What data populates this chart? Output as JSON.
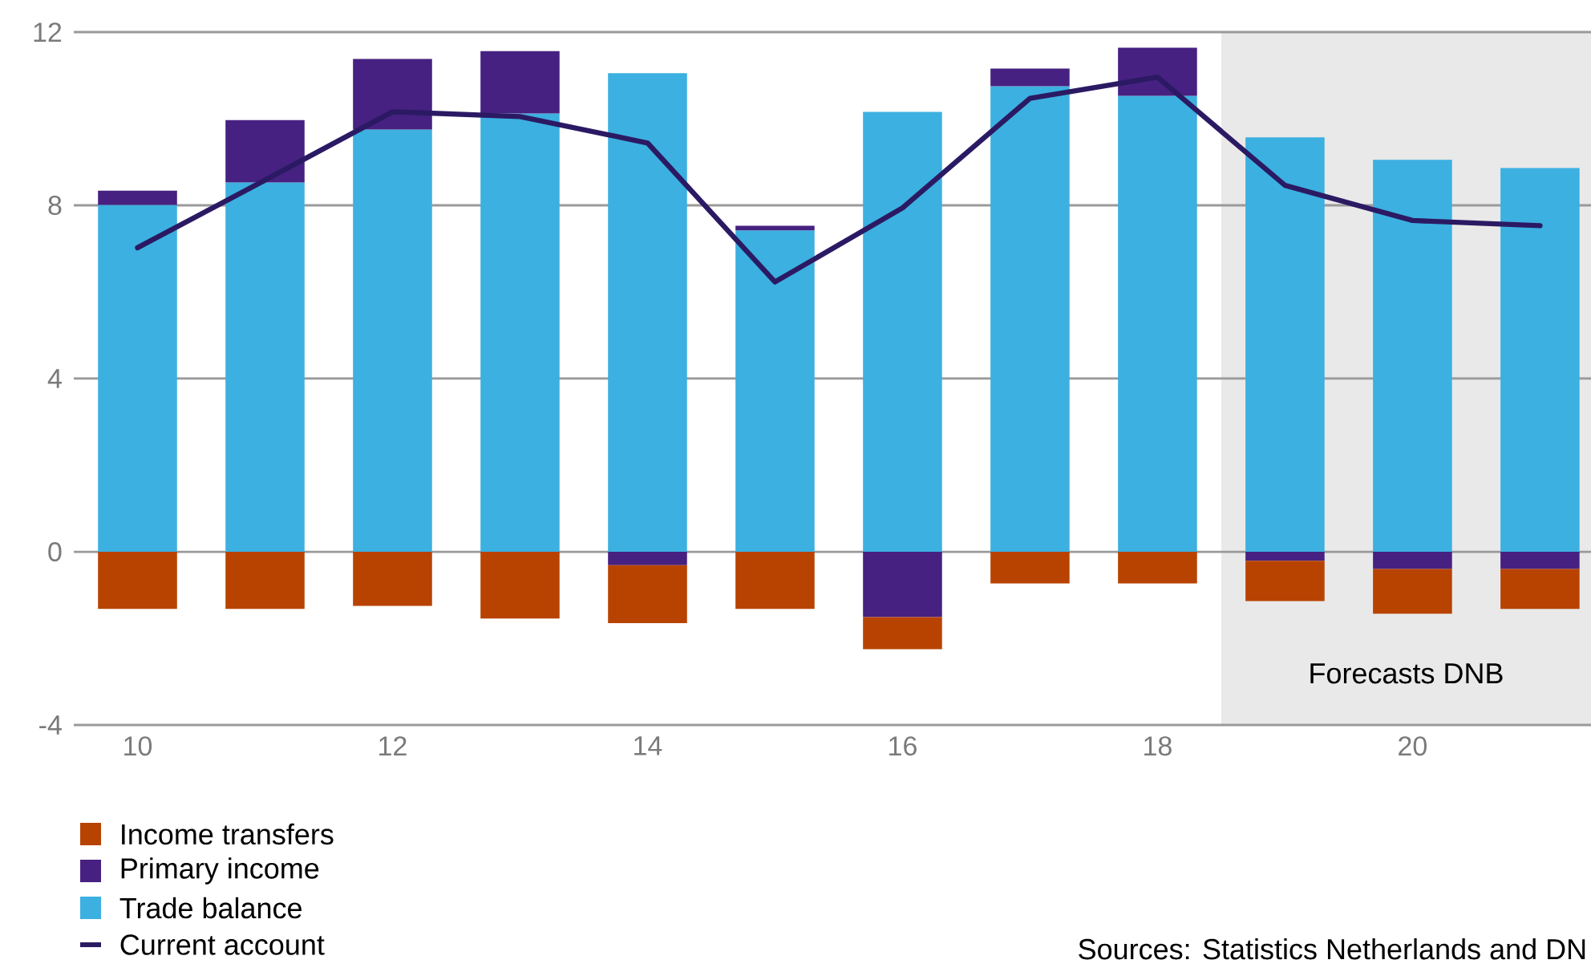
{
  "chart_data": {
    "type": "bar",
    "stacked": true,
    "x": [
      10,
      11,
      12,
      13,
      14,
      15,
      16,
      17,
      18,
      19,
      20,
      21
    ],
    "xlim": [
      9.5,
      21.4
    ],
    "xticks": [
      10,
      12,
      14,
      16,
      18,
      20
    ],
    "ylim": [
      -4,
      12
    ],
    "yticks": [
      -4,
      0,
      4,
      8,
      12
    ],
    "grid": "y",
    "legend": "bottom left",
    "series": [
      {
        "name": "Trade balance",
        "color": "#3cb0e0",
        "values": [
          8.01,
          8.53,
          9.75,
          10.12,
          11.05,
          7.42,
          10.16,
          10.75,
          10.53,
          9.57,
          9.05,
          8.86
        ]
      },
      {
        "name": "Primary income",
        "color": "#462181",
        "values": [
          0.33,
          1.44,
          1.63,
          1.44,
          -0.31,
          0.11,
          -1.51,
          0.41,
          1.11,
          -0.21,
          -0.4,
          -0.4
        ]
      },
      {
        "name": "Income transfers",
        "color": "#b84300",
        "values": [
          -1.32,
          -1.32,
          -1.25,
          -1.54,
          -1.34,
          -1.32,
          -0.74,
          -0.73,
          -0.73,
          -0.93,
          -1.03,
          -0.92
        ]
      },
      {
        "name": "Current account",
        "type": "line",
        "color": "#2b1a63",
        "values": [
          7.02,
          8.58,
          10.16,
          10.05,
          9.44,
          6.23,
          7.94,
          10.47,
          10.96,
          8.46,
          7.65,
          7.53
        ]
      }
    ],
    "bands": [
      {
        "axis": "x",
        "from": 18.5,
        "to": 21.4,
        "label": "Forecasts DNB",
        "color": "#e9e9e9"
      }
    ],
    "annotations": [
      "Sources: Statistics Netherlands and DN"
    ]
  }
}
